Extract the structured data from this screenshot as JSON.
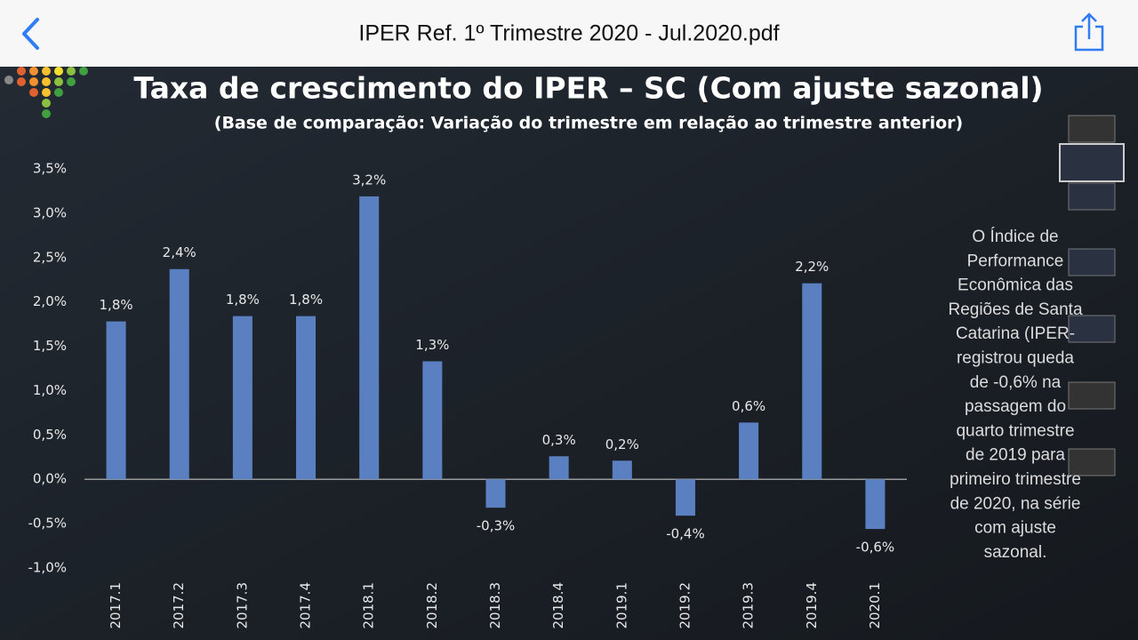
{
  "header": {
    "title": "IPER Ref. 1º Trimestre 2020 - Jul.2020.pdf"
  },
  "chart_data": {
    "type": "bar",
    "title": "Taxa de crescimento do IPER – SC (Com ajuste sazonal)",
    "subtitle": "(Base de comparação: Variação do trimestre em relação ao trimestre anterior)",
    "categories": [
      "2017.1",
      "2017.2",
      "2017.3",
      "2017.4",
      "2018.1",
      "2018.2",
      "2018.3",
      "2018.4",
      "2019.1",
      "2019.2",
      "2019.3",
      "2019.4",
      "2020.1"
    ],
    "values": [
      1.78,
      2.37,
      1.84,
      1.84,
      3.19,
      1.33,
      -0.32,
      0.26,
      0.21,
      -0.41,
      0.64,
      2.21,
      -0.56
    ],
    "value_labels": [
      "1,8%",
      "2,4%",
      "1,8%",
      "1,8%",
      "3,2%",
      "1,3%",
      "-0,3%",
      "0,3%",
      "0,2%",
      "-0,4%",
      "0,6%",
      "2,2%",
      "-0,6%"
    ],
    "color": "#5b80c2",
    "ylim": [
      -1.0,
      3.5
    ],
    "yticks": [
      {
        "value": 3.5,
        "label": "3,5%"
      },
      {
        "value": 3.0,
        "label": "3,0%"
      },
      {
        "value": 2.5,
        "label": "2,5%"
      },
      {
        "value": 2.0,
        "label": "2,0%"
      },
      {
        "value": 1.5,
        "label": "1,5%"
      },
      {
        "value": 1.0,
        "label": "1,0%"
      },
      {
        "value": 0.5,
        "label": "0,5%"
      },
      {
        "value": 0.0,
        "label": "0,0%"
      },
      {
        "value": -0.5,
        "label": "-0,5%"
      },
      {
        "value": -1.0,
        "label": "-1,0%"
      }
    ],
    "grid": false
  },
  "side_text": [
    "O Índice de",
    "Performance",
    "Econômica das",
    "Regiões de Santa",
    "Catarina (IPER-",
    "registrou queda",
    "de -0,6% na",
    "passagem do",
    "quarto trimestre",
    "de 2019 para",
    "primeiro trimestre",
    "de 2020, na série",
    "com ajuste",
    "sazonal."
  ]
}
